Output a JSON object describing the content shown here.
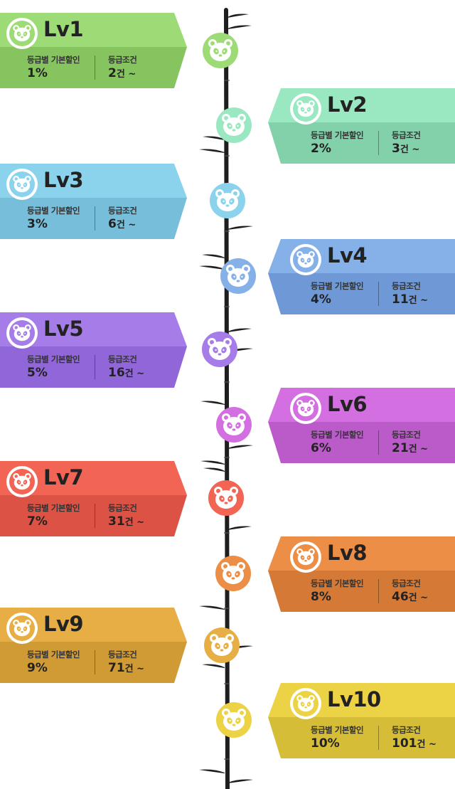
{
  "labels": {
    "discount": "등급별 기본할인",
    "condition": "등급조건"
  },
  "icons": {
    "badge": "panda-face-icon",
    "node": "panda-face-icon",
    "stem": "bamboo-stem"
  },
  "tiers": [
    {
      "level": "Lv1",
      "discount": "1%",
      "count": "2",
      "unit": "건 ~",
      "color": "#9ddb77",
      "color_dark": "#86c45f",
      "side": "left"
    },
    {
      "level": "Lv2",
      "discount": "2%",
      "count": "3",
      "unit": "건 ~",
      "color": "#99e8c1",
      "color_dark": "#82d1aa",
      "side": "right"
    },
    {
      "level": "Lv3",
      "discount": "3%",
      "count": "6",
      "unit": "건 ~",
      "color": "#8bd3ed",
      "color_dark": "#77bedb",
      "side": "left"
    },
    {
      "level": "Lv4",
      "discount": "4%",
      "count": "11",
      "unit": "건 ~",
      "color": "#85b0e8",
      "color_dark": "#6f99d6",
      "side": "right"
    },
    {
      "level": "Lv5",
      "discount": "5%",
      "count": "16",
      "unit": "건 ~",
      "color": "#a67ce8",
      "color_dark": "#9066d8",
      "side": "left"
    },
    {
      "level": "Lv6",
      "discount": "6%",
      "count": "21",
      "unit": "건 ~",
      "color": "#d36fe0",
      "color_dark": "#bb5bc9",
      "side": "right"
    },
    {
      "level": "Lv7",
      "discount": "7%",
      "count": "31",
      "unit": "건 ~",
      "color": "#f26454",
      "color_dark": "#dc5245",
      "side": "left"
    },
    {
      "level": "Lv8",
      "discount": "8%",
      "count": "46",
      "unit": "건 ~",
      "color": "#ec8e45",
      "color_dark": "#d47a36",
      "side": "right"
    },
    {
      "level": "Lv9",
      "discount": "9%",
      "count": "71",
      "unit": "건 ~",
      "color": "#e7ae45",
      "color_dark": "#d09a35",
      "side": "left"
    },
    {
      "level": "Lv10",
      "discount": "10%",
      "count": "101",
      "unit": "건 ~",
      "color": "#ecd245",
      "color_dark": "#d6bd37",
      "side": "right"
    }
  ]
}
